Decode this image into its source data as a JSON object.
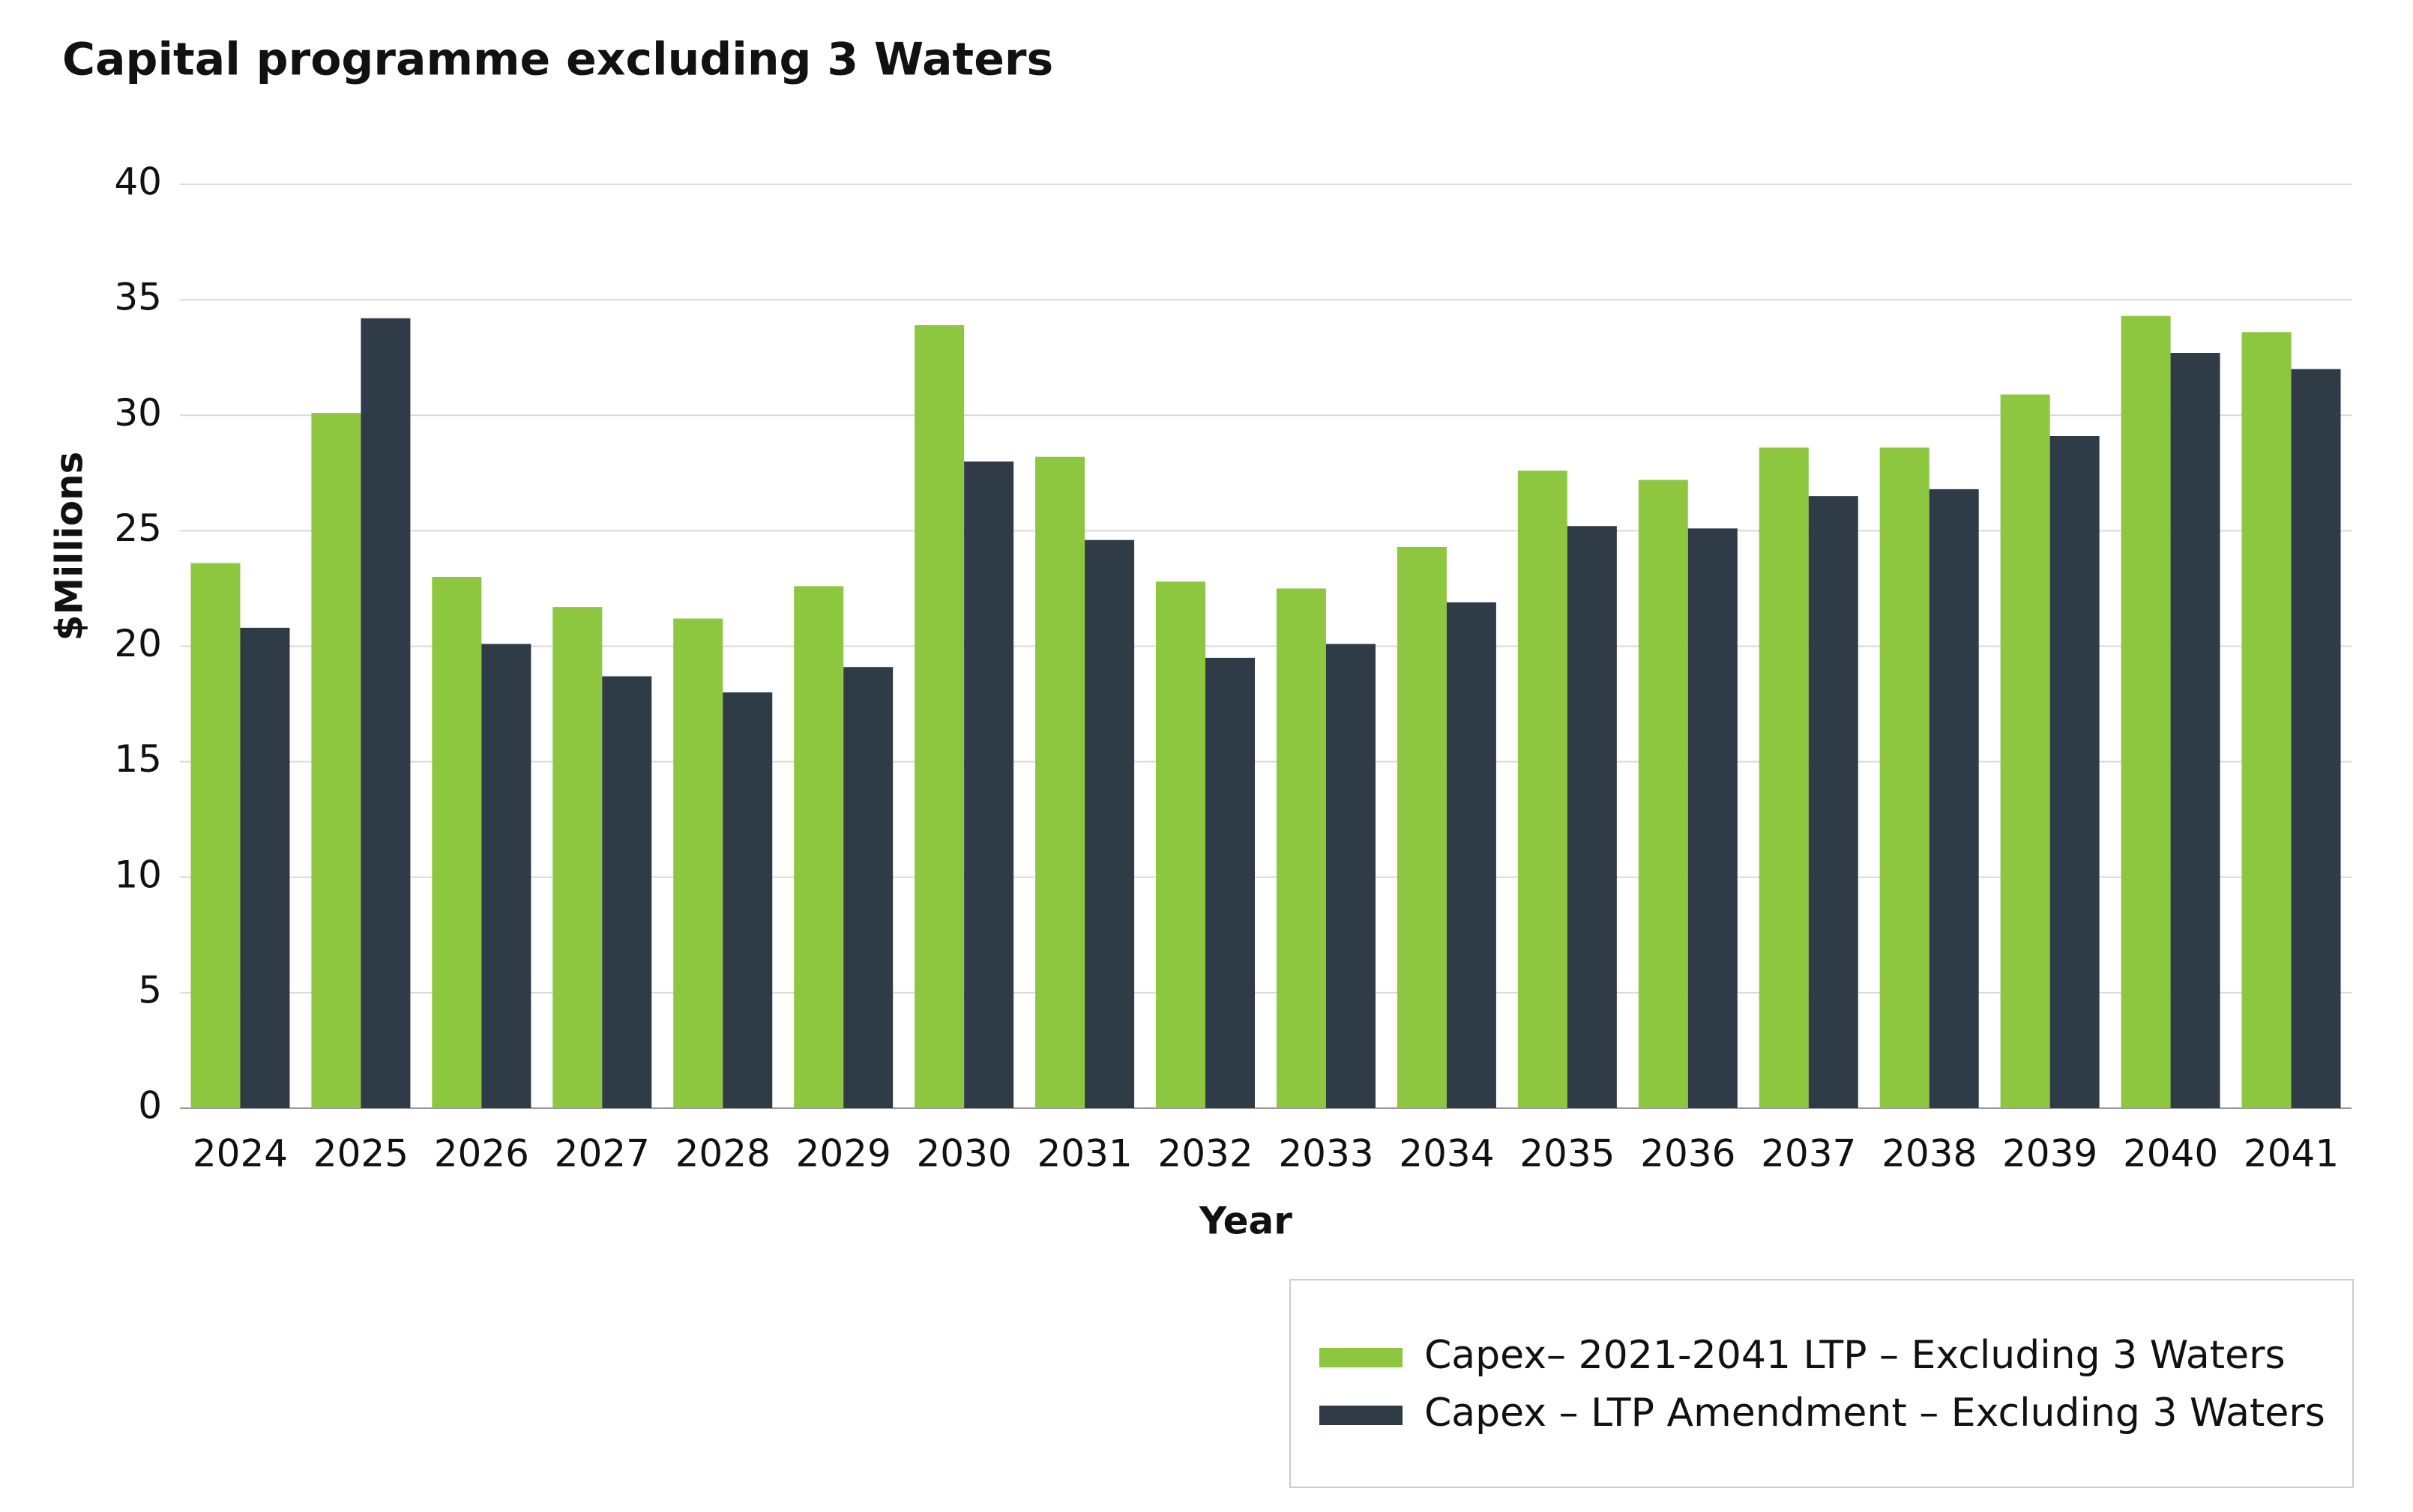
{
  "chart_data": {
    "type": "bar",
    "title": "Capital programme excluding 3 Waters",
    "x_label": "Year",
    "y_label": "$Millions",
    "categories": [
      "2024",
      "2025",
      "2026",
      "2027",
      "2028",
      "2029",
      "2030",
      "2031",
      "2032",
      "2033",
      "2034",
      "2035",
      "2036",
      "2037",
      "2038",
      "2039",
      "2040",
      "2041"
    ],
    "series": [
      {
        "name": "Capex– 2021-2041 LTP – Excluding 3 Waters",
        "color": "#8dc63f",
        "values": [
          23.6,
          30.1,
          23.0,
          21.7,
          21.2,
          22.6,
          33.9,
          28.2,
          22.8,
          22.5,
          24.3,
          27.6,
          27.2,
          28.6,
          28.6,
          30.9,
          34.3,
          33.6
        ]
      },
      {
        "name": "Capex – LTP Amendment – Excluding 3 Waters",
        "color": "#2f3b46",
        "values": [
          20.8,
          34.2,
          20.1,
          18.7,
          18.0,
          19.1,
          28.0,
          24.6,
          19.5,
          20.1,
          21.9,
          25.2,
          25.1,
          26.5,
          26.8,
          29.1,
          32.7,
          32.0
        ]
      }
    ],
    "ylim": [
      0,
      40
    ],
    "yticks": [
      0,
      5,
      10,
      15,
      20,
      25,
      30,
      35,
      40
    ],
    "grid": true,
    "legend": "bottom-right"
  }
}
